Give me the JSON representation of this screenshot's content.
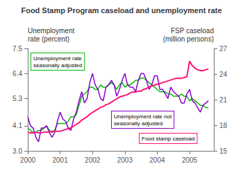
{
  "chart_data": {
    "type": "line",
    "title": "Food Stamp Program caseload and unemployment rate",
    "ylabel": "Unemployment\nrate (percent)",
    "y2label": "FSP caseload\n(million persons)",
    "x": [
      2000.0,
      2000.083,
      2000.167,
      2000.25,
      2000.333,
      2000.417,
      2000.5,
      2000.583,
      2000.667,
      2000.75,
      2000.833,
      2000.917,
      2001.0,
      2001.083,
      2001.167,
      2001.25,
      2001.333,
      2001.417,
      2001.5,
      2001.583,
      2001.667,
      2001.75,
      2001.833,
      2001.917,
      2002.0,
      2002.083,
      2002.167,
      2002.25,
      2002.333,
      2002.417,
      2002.5,
      2002.583,
      2002.667,
      2002.75,
      2002.833,
      2002.917,
      2003.0,
      2003.083,
      2003.167,
      2003.25,
      2003.333,
      2003.417,
      2003.5,
      2003.583,
      2003.667,
      2003.75,
      2003.833,
      2003.917,
      2004.0,
      2004.083,
      2004.167,
      2004.25,
      2004.333,
      2004.417,
      2004.5,
      2004.583,
      2004.667,
      2004.75,
      2004.833,
      2004.917,
      2005.0,
      2005.083,
      2005.167,
      2005.25,
      2005.333,
      2005.417,
      2005.5,
      2005.583
    ],
    "xlim": [
      2000.0,
      2005.75
    ],
    "xticks": [
      2000,
      2001,
      2002,
      2003,
      2004,
      2005
    ],
    "ylim": [
      3.0,
      7.5
    ],
    "yticks": [
      {
        "value": 3.0,
        "label": "3.0"
      },
      4.1,
      5.3,
      6.4,
      7.5
    ],
    "y2lim": [
      15,
      27
    ],
    "y2ticks": [
      15,
      18,
      21,
      24,
      27
    ],
    "grid": false,
    "series": [
      {
        "color": "#00bb00",
        "values": [
          4.0,
          3.9,
          3.8,
          3.8,
          3.9,
          3.9,
          4.0,
          4.1,
          3.9,
          3.8,
          3.9,
          4.2,
          4.2,
          4.2,
          4.2,
          4.3,
          4.5,
          4.5,
          4.6,
          5.0,
          5.4,
          5.5,
          5.6,
          5.8,
          5.8,
          5.7,
          5.7,
          5.9,
          5.8,
          5.8,
          5.9,
          6.0,
          5.9,
          5.7,
          5.9,
          6.0,
          5.8,
          5.9,
          5.9,
          6.0,
          6.1,
          6.1,
          6.2,
          6.2,
          6.1,
          6.0,
          5.9,
          5.8,
          5.7,
          5.6,
          5.6,
          5.6,
          5.5,
          5.5,
          5.4,
          5.4,
          5.4,
          5.5,
          5.4,
          5.4,
          5.2,
          5.3,
          5.2,
          5.1,
          5.0,
          5.0,
          4.9,
          4.9
        ]
      },
      {
        "color": "#8800cc",
        "values": [
          4.5,
          4.1,
          4.0,
          3.6,
          3.4,
          4.0,
          4.0,
          4.1,
          3.8,
          3.6,
          3.8,
          4.3,
          4.7,
          4.4,
          4.3,
          4.0,
          3.9,
          4.4,
          4.7,
          5.2,
          5.6,
          5.1,
          5.3,
          6.0,
          6.4,
          5.9,
          5.7,
          5.3,
          5.2,
          5.8,
          5.9,
          6.1,
          5.9,
          5.4,
          5.7,
          6.1,
          6.4,
          5.9,
          5.8,
          5.8,
          5.6,
          6.1,
          6.4,
          6.4,
          6.1,
          5.7,
          5.9,
          6.3,
          6.3,
          5.7,
          5.7,
          5.5,
          5.3,
          5.8,
          5.6,
          5.5,
          5.4,
          5.1,
          5.1,
          5.5,
          5.7,
          5.2,
          5.1,
          4.9,
          4.7,
          5.0,
          5.1,
          5.2
        ]
      },
      {
        "color": "#ff1177",
        "axis": "y2",
        "values": [
          17.2,
          17.1,
          17.1,
          17.2,
          17.1,
          17.1,
          17.2,
          17.2,
          17.2,
          17.3,
          17.3,
          17.3,
          17.3,
          17.4,
          17.5,
          17.6,
          17.7,
          17.9,
          18.1,
          18.3,
          18.6,
          18.8,
          19.0,
          19.3,
          19.5,
          19.7,
          19.9,
          20.1,
          20.2,
          20.4,
          20.5,
          20.7,
          20.9,
          21.1,
          21.3,
          21.4,
          21.5,
          21.6,
          21.8,
          21.9,
          21.9,
          22.0,
          22.0,
          22.2,
          22.3,
          22.5,
          22.6,
          22.7,
          22.8,
          22.9,
          23.0,
          23.1,
          23.2,
          23.3,
          23.4,
          23.5,
          23.5,
          23.5,
          23.6,
          23.7,
          25.5,
          25.0,
          24.7,
          24.5,
          24.4,
          24.4,
          24.5,
          24.6
        ]
      }
    ],
    "annotations": [
      {
        "text": "Unemployment rate not\nseasonally adjusted",
        "color": "#8800cc"
      },
      {
        "text": "Unemployment rate\nseasonally adjusted",
        "color": "#00bb00"
      },
      {
        "text": "Food stamp caseload",
        "color": "#ff1177"
      }
    ]
  }
}
